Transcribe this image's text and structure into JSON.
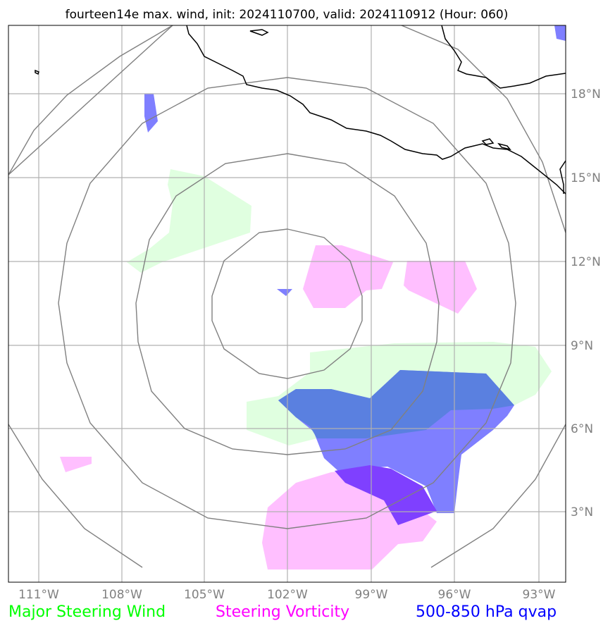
{
  "title": "fourteen14e max. wind, init: 2024110700, valid: 2024110912 (Hour: 060)",
  "colors": {
    "steering_wind": "#00ff00",
    "steering_vorticity": "#ff00ff",
    "qvap": "#0000ff",
    "wind_fill": "#e0ffe0",
    "vort_fill": "#ffbfff",
    "qvap_fill": "#7f7fff",
    "overlap_fill": "#5a80e0",
    "overlap2_fill": "#7f40ff",
    "grid": "#b0b0b0",
    "rings": "#808080",
    "coast": "#000000"
  },
  "axes": {
    "lon_ticks": [
      "111°W",
      "108°W",
      "105°W",
      "102°W",
      "99°W",
      "96°W",
      "93°W"
    ],
    "lat_ticks": [
      "18°N",
      "15°N",
      "12°N",
      "9°N",
      "6°N",
      "3°N"
    ]
  },
  "legend": {
    "wind": "Major Steering Wind",
    "vorticity": "Steering Vorticity",
    "qvap": "500-850 hPa qvap"
  }
}
